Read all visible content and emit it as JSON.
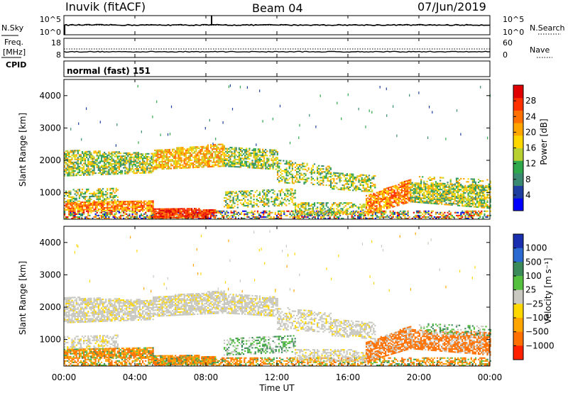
{
  "header": {
    "station": "Inuvik (fitACF)",
    "beam": "Beam 04",
    "date": "07/Jun/2019"
  },
  "chart_data": [
    {
      "type": "line",
      "panel": "noise",
      "left_label": "N.Sky",
      "right_label": "N.Search",
      "left_ticks": [
        "10^5",
        "10^0"
      ],
      "right_ticks": [
        "10^5",
        "10^0"
      ],
      "line_style_note": "solid=N.Sky, dotted=N.Search"
    },
    {
      "type": "line",
      "panel": "frequency",
      "left_label_line1": "Freq.",
      "left_label_line2": "[MHz]",
      "left_label_line3": "CPID",
      "right_label": "Nave",
      "left_ticks": [
        "18",
        "8"
      ],
      "right_ticks": [
        "60",
        "0"
      ]
    },
    {
      "type": "heatmap",
      "panel": "power",
      "cpid_text": "normal (fast) 151",
      "ylabel": "Slant Range [km]",
      "yticks": [
        1000,
        2000,
        3000,
        4000
      ],
      "ylim": [
        180,
        4500
      ],
      "colorbar_label": "Power [dB]",
      "colorbar_ticks": [
        "4",
        "8",
        "12",
        "16",
        "20",
        "24",
        "28"
      ],
      "colors": [
        "#0000ff",
        "#1f3fa0",
        "#3a8a72",
        "#2ea84a",
        "#b8d030",
        "#ffd700",
        "#ffa500",
        "#ff7000",
        "#ff3000",
        "#e00000"
      ]
    },
    {
      "type": "heatmap",
      "panel": "velocity",
      "ylabel": "Slant Range [km]",
      "yticks": [
        1000,
        2000,
        3000,
        4000
      ],
      "ylim": [
        180,
        4500
      ],
      "colorbar_label": "Velocity [m s⁻¹]",
      "colorbar_ticks": [
        "1000",
        "500",
        "100",
        "25",
        "−25",
        "−100",
        "−500",
        "−1000"
      ],
      "colors": [
        "#1a2fb0",
        "#2b6ad0",
        "#3a8a5a",
        "#55c040",
        "#c8c8c0",
        "#ffd700",
        "#ffa500",
        "#ff7000",
        "#ff2000"
      ]
    }
  ],
  "x_axis": {
    "label": "Time UT",
    "ticks": [
      "00:00",
      "04:00",
      "08:00",
      "12:00",
      "16:00",
      "20:00",
      "00:00"
    ]
  }
}
